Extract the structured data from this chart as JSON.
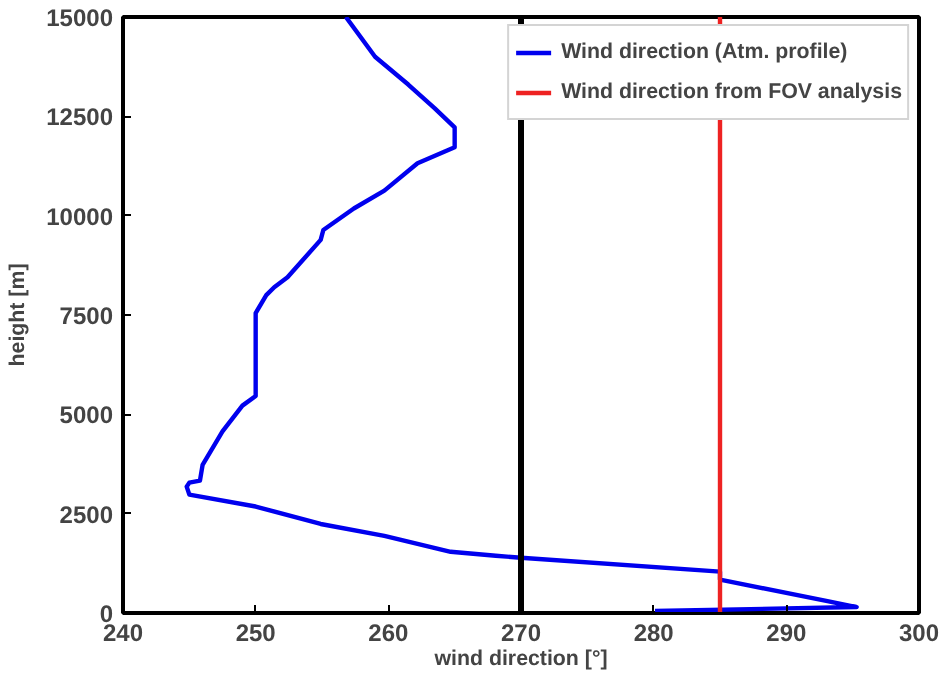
{
  "chart_data": {
    "type": "line",
    "xlabel": "wind direction [°]",
    "ylabel": "height [m]",
    "xlim": [
      240,
      300
    ],
    "ylim": [
      0,
      15000
    ],
    "xticks": [
      240,
      250,
      260,
      270,
      280,
      290,
      300
    ],
    "yticks": [
      0,
      2500,
      5000,
      7500,
      10000,
      12500,
      15000
    ],
    "grid": false,
    "legend": "top right",
    "series": [
      {
        "name": "Wind direction (Atm. profile)",
        "color": "#0000ee",
        "x": [
          256.8,
          259.0,
          261.5,
          263.5,
          265,
          265,
          262.2,
          259.7,
          257.4,
          255.1,
          254.9,
          252.4,
          251.4,
          250.8,
          250,
          250,
          249,
          247.5,
          246,
          245.8,
          245,
          244.8,
          245,
          250,
          254.9,
          259.7,
          264.7,
          268.1,
          270,
          285,
          285,
          293.1,
          295.3,
          280.1
        ],
        "values": [
          15000,
          14000,
          13300,
          12700,
          12220,
          11720,
          11320,
          10630,
          10180,
          9640,
          9390,
          8450,
          8200,
          8000,
          7550,
          5460,
          5220,
          4570,
          3730,
          3330,
          3280,
          3180,
          2980,
          2680,
          2240,
          1940,
          1540,
          1440,
          1390,
          1040,
          840,
          300,
          150,
          50
        ]
      },
      {
        "name": "Wind direction from FOV analysis",
        "color": "#ee2222",
        "x": [
          285,
          285
        ],
        "values": [
          0,
          15000
        ]
      }
    ],
    "ref_lines": [
      {
        "axis": "x",
        "value": 270,
        "color": "#000000"
      }
    ]
  }
}
